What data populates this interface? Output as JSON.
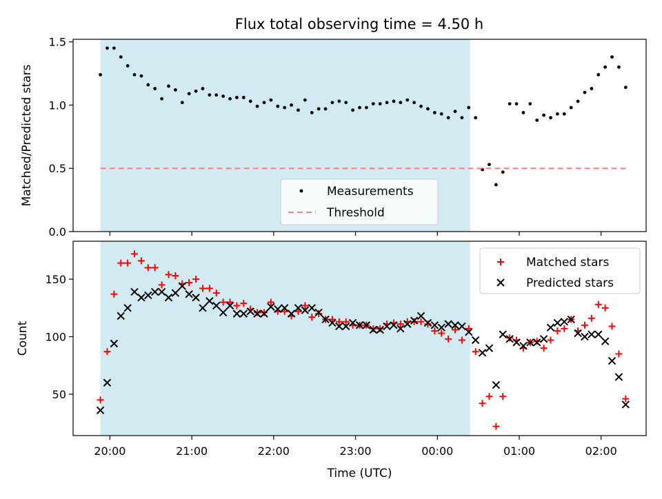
{
  "chart_data": {
    "title": "Flux total observing time = 4.50 h",
    "xlabel": "Time (UTC)",
    "x_ticks": [
      "20:00",
      "21:00",
      "22:00",
      "23:00",
      "00:00",
      "01:00",
      "02:00"
    ],
    "x_range": [
      "19:33",
      "02:33"
    ],
    "shaded_interval": [
      "19:53",
      "00:24"
    ],
    "colors": {
      "shade": "#add8e6",
      "threshold": "#ff7f7f",
      "matched": "#ff0000",
      "predicted": "#000000",
      "measurement": "#000000"
    },
    "panels": [
      {
        "type": "scatter",
        "ylabel": "Matched/Predicted stars",
        "ylim": [
          0,
          1.52
        ],
        "y_ticks": [
          "0.0",
          "0.5",
          "1.0",
          "1.5"
        ],
        "legend_position": "lower-center",
        "series": [
          {
            "name": "Measurements",
            "marker": "dot",
            "points": [
              [
                "19:53",
                1.24
              ],
              [
                "19:58",
                1.45
              ],
              [
                "20:03",
                1.45
              ],
              [
                "20:08",
                1.38
              ],
              [
                "20:13",
                1.31
              ],
              [
                "20:18",
                1.24
              ],
              [
                "20:23",
                1.23
              ],
              [
                "20:28",
                1.16
              ],
              [
                "20:33",
                1.13
              ],
              [
                "20:38",
                1.05
              ],
              [
                "20:43",
                1.15
              ],
              [
                "20:48",
                1.12
              ],
              [
                "20:53",
                1.02
              ],
              [
                "20:58",
                1.09
              ],
              [
                "21:03",
                1.11
              ],
              [
                "21:08",
                1.13
              ],
              [
                "21:13",
                1.08
              ],
              [
                "21:18",
                1.08
              ],
              [
                "21:23",
                1.07
              ],
              [
                "21:28",
                1.05
              ],
              [
                "21:33",
                1.06
              ],
              [
                "21:38",
                1.06
              ],
              [
                "21:43",
                1.03
              ],
              [
                "21:48",
                0.99
              ],
              [
                "21:53",
                1.02
              ],
              [
                "21:58",
                1.04
              ],
              [
                "22:03",
                0.99
              ],
              [
                "22:08",
                0.98
              ],
              [
                "22:13",
                1.0
              ],
              [
                "22:18",
                0.96
              ],
              [
                "22:23",
                1.04
              ],
              [
                "22:28",
                0.94
              ],
              [
                "22:33",
                0.97
              ],
              [
                "22:38",
                0.97
              ],
              [
                "22:43",
                1.02
              ],
              [
                "22:48",
                1.03
              ],
              [
                "22:53",
                1.02
              ],
              [
                "22:58",
                0.96
              ],
              [
                "23:03",
                0.98
              ],
              [
                "23:08",
                0.98
              ],
              [
                "23:13",
                1.01
              ],
              [
                "23:18",
                1.01
              ],
              [
                "23:23",
                1.02
              ],
              [
                "23:28",
                1.03
              ],
              [
                "23:33",
                1.02
              ],
              [
                "23:38",
                1.04
              ],
              [
                "23:43",
                1.02
              ],
              [
                "23:48",
                0.99
              ],
              [
                "23:53",
                0.97
              ],
              [
                "23:58",
                0.94
              ],
              [
                "00:03",
                0.93
              ],
              [
                "00:08",
                0.9
              ],
              [
                "00:13",
                0.95
              ],
              [
                "00:18",
                0.9
              ],
              [
                "00:23",
                0.98
              ],
              [
                "00:28",
                0.9
              ],
              [
                "00:33",
                0.49
              ],
              [
                "00:38",
                0.53
              ],
              [
                "00:43",
                0.37
              ],
              [
                "00:48",
                0.47
              ],
              [
                "00:53",
                1.01
              ],
              [
                "00:58",
                1.01
              ],
              [
                "01:03",
                0.94
              ],
              [
                "01:08",
                1.01
              ],
              [
                "01:13",
                0.88
              ],
              [
                "01:18",
                0.92
              ],
              [
                "01:23",
                0.9
              ],
              [
                "01:28",
                0.93
              ],
              [
                "01:33",
                0.93
              ],
              [
                "01:38",
                0.98
              ],
              [
                "01:43",
                1.03
              ],
              [
                "01:48",
                1.1
              ],
              [
                "01:53",
                1.13
              ],
              [
                "01:58",
                1.24
              ],
              [
                "02:03",
                1.3
              ],
              [
                "02:08",
                1.38
              ],
              [
                "02:13",
                1.3
              ],
              [
                "02:18",
                1.14
              ]
            ]
          },
          {
            "name": "Threshold",
            "style": "dashed",
            "y": 0.5,
            "x_range": [
              "19:53",
              "02:18"
            ]
          }
        ]
      },
      {
        "type": "scatter",
        "ylabel": "Count",
        "ylim": [
          14,
          183
        ],
        "y_ticks": [
          "50",
          "100",
          "150"
        ],
        "legend_position": "top-right",
        "series": [
          {
            "name": "Matched stars",
            "marker": "plus",
            "points": [
              [
                "19:53",
                45
              ],
              [
                "19:58",
                87
              ],
              [
                "20:03",
                137
              ],
              [
                "20:08",
                164
              ],
              [
                "20:13",
                164
              ],
              [
                "20:18",
                172
              ],
              [
                "20:23",
                166
              ],
              [
                "20:28",
                160
              ],
              [
                "20:33",
                160
              ],
              [
                "20:38",
                145
              ],
              [
                "20:43",
                154
              ],
              [
                "20:48",
                153
              ],
              [
                "20:53",
                146
              ],
              [
                "20:58",
                147
              ],
              [
                "21:03",
                150
              ],
              [
                "21:08",
                142
              ],
              [
                "21:13",
                142
              ],
              [
                "21:18",
                138
              ],
              [
                "21:23",
                130
              ],
              [
                "21:28",
                130
              ],
              [
                "21:33",
                127
              ],
              [
                "21:38",
                129
              ],
              [
                "21:43",
                124
              ],
              [
                "21:48",
                121
              ],
              [
                "21:53",
                121
              ],
              [
                "21:58",
                130
              ],
              [
                "22:03",
                122
              ],
              [
                "22:08",
                122
              ],
              [
                "22:13",
                118
              ],
              [
                "22:18",
                122
              ],
              [
                "22:23",
                127
              ],
              [
                "22:28",
                117
              ],
              [
                "22:33",
                120
              ],
              [
                "22:38",
                115
              ],
              [
                "22:43",
                115
              ],
              [
                "22:48",
                113
              ],
              [
                "22:53",
                113
              ],
              [
                "22:58",
                110
              ],
              [
                "23:03",
                110
              ],
              [
                "23:08",
                110
              ],
              [
                "23:13",
                107
              ],
              [
                "23:18",
                107
              ],
              [
                "23:23",
                111
              ],
              [
                "23:28",
                112
              ],
              [
                "23:33",
                111
              ],
              [
                "23:38",
                113
              ],
              [
                "23:43",
                113
              ],
              [
                "23:48",
                113
              ],
              [
                "23:53",
                111
              ],
              [
                "23:58",
                105
              ],
              [
                "00:03",
                103
              ],
              [
                "00:08",
                98
              ],
              [
                "00:13",
                106
              ],
              [
                "00:18",
                97
              ],
              [
                "00:23",
                107
              ],
              [
                "00:28",
                87
              ],
              [
                "00:33",
                42
              ],
              [
                "00:38",
                48
              ],
              [
                "00:43",
                22
              ],
              [
                "00:48",
                48
              ],
              [
                "00:53",
                99
              ],
              [
                "00:58",
                97
              ],
              [
                "01:03",
                90
              ],
              [
                "01:08",
                95
              ],
              [
                "01:13",
                96
              ],
              [
                "01:18",
                90
              ],
              [
                "01:23",
                97
              ],
              [
                "01:28",
                105
              ],
              [
                "01:33",
                107
              ],
              [
                "01:38",
                115
              ],
              [
                "01:43",
                105
              ],
              [
                "01:48",
                110
              ],
              [
                "01:53",
                116
              ],
              [
                "01:58",
                128
              ],
              [
                "02:03",
                125
              ],
              [
                "02:08",
                109
              ],
              [
                "02:13",
                85
              ],
              [
                "02:18",
                46
              ]
            ]
          },
          {
            "name": "Predicted stars",
            "marker": "x",
            "points": [
              [
                "19:53",
                36
              ],
              [
                "19:58",
                60
              ],
              [
                "20:03",
                94
              ],
              [
                "20:08",
                118
              ],
              [
                "20:13",
                125
              ],
              [
                "20:18",
                139
              ],
              [
                "20:23",
                134
              ],
              [
                "20:28",
                136
              ],
              [
                "20:33",
                139
              ],
              [
                "20:38",
                139
              ],
              [
                "20:43",
                134
              ],
              [
                "20:48",
                138
              ],
              [
                "20:53",
                144
              ],
              [
                "20:58",
                137
              ],
              [
                "21:03",
                134
              ],
              [
                "21:08",
                125
              ],
              [
                "21:13",
                131
              ],
              [
                "21:18",
                127
              ],
              [
                "21:23",
                121
              ],
              [
                "21:28",
                127
              ],
              [
                "21:33",
                120
              ],
              [
                "21:38",
                120
              ],
              [
                "21:43",
                122
              ],
              [
                "21:48",
                120
              ],
              [
                "21:53",
                120
              ],
              [
                "21:58",
                126
              ],
              [
                "22:03",
                124
              ],
              [
                "22:08",
                125
              ],
              [
                "22:13",
                120
              ],
              [
                "22:18",
                125
              ],
              [
                "22:23",
                123
              ],
              [
                "22:28",
                125
              ],
              [
                "22:33",
                121
              ],
              [
                "22:38",
                115
              ],
              [
                "22:43",
                112
              ],
              [
                "22:48",
                109
              ],
              [
                "22:53",
                109
              ],
              [
                "22:58",
                112
              ],
              [
                "23:03",
                110
              ],
              [
                "23:08",
                110
              ],
              [
                "23:13",
                106
              ],
              [
                "23:18",
                106
              ],
              [
                "23:23",
                109
              ],
              [
                "23:28",
                110
              ],
              [
                "23:33",
                107
              ],
              [
                "23:38",
                111
              ],
              [
                "23:43",
                114
              ],
              [
                "23:48",
                118
              ],
              [
                "23:53",
                112
              ],
              [
                "23:58",
                110
              ],
              [
                "00:03",
                108
              ],
              [
                "00:08",
                111
              ],
              [
                "00:13",
                110
              ],
              [
                "00:18",
                109
              ],
              [
                "00:23",
                104
              ],
              [
                "00:28",
                97
              ],
              [
                "00:33",
                86
              ],
              [
                "00:38",
                90
              ],
              [
                "00:43",
                58
              ],
              [
                "00:48",
                102
              ],
              [
                "00:53",
                98
              ],
              [
                "00:58",
                95
              ],
              [
                "01:03",
                92
              ],
              [
                "01:08",
                95
              ],
              [
                "01:13",
                95
              ],
              [
                "01:18",
                98
              ],
              [
                "01:23",
                108
              ],
              [
                "01:28",
                112
              ],
              [
                "01:33",
                113
              ],
              [
                "01:38",
                115
              ],
              [
                "01:43",
                103
              ],
              [
                "01:48",
                100
              ],
              [
                "01:53",
                102
              ],
              [
                "01:58",
                102
              ],
              [
                "02:03",
                96
              ],
              [
                "02:08",
                79
              ],
              [
                "02:13",
                65
              ],
              [
                "02:18",
                41
              ]
            ]
          }
        ]
      }
    ]
  }
}
